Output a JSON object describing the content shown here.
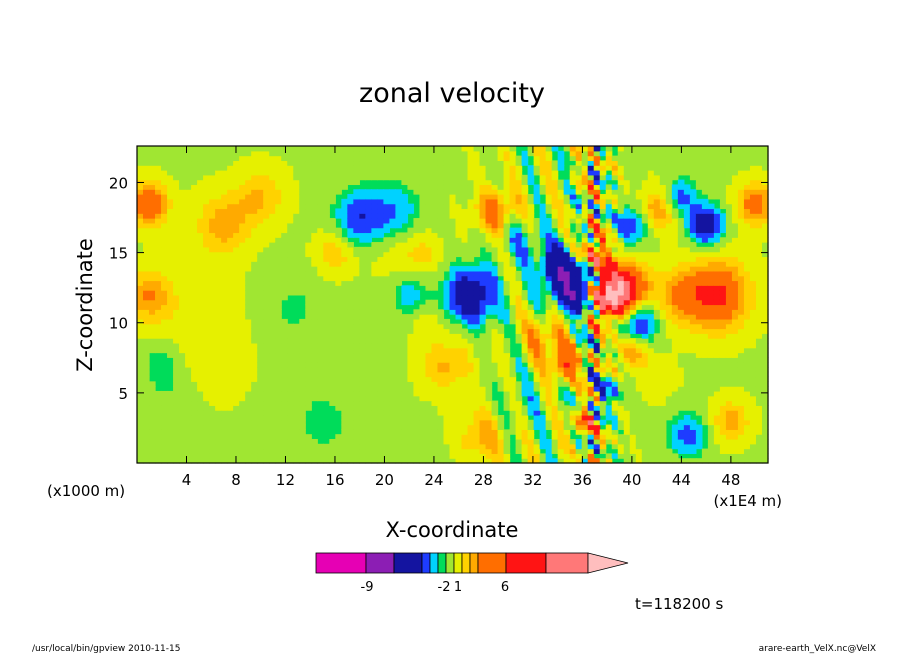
{
  "chart_data": {
    "type": "heatmap",
    "title": "zonal velocity",
    "xlabel": "X-coordinate",
    "ylabel": "Z-coordinate",
    "x_units_left": "(x1000 m)",
    "x_units_right": "(x1E4 m)",
    "x_ticks": [
      "4",
      "8",
      "12",
      "16",
      "20",
      "24",
      "28",
      "32",
      "36",
      "40",
      "44",
      "48"
    ],
    "x_tick_values": [
      4,
      8,
      12,
      16,
      20,
      24,
      28,
      32,
      36,
      40,
      44,
      48
    ],
    "xlim": [
      0,
      51
    ],
    "y_ticks": [
      "5",
      "10",
      "15",
      "20"
    ],
    "y_tick_values": [
      5,
      10,
      15,
      20
    ],
    "ylim": [
      0,
      22.6
    ],
    "time_label": "t=118200 s",
    "colorbar": {
      "colors": [
        "#e600b4",
        "#8c1eb4",
        "#1414a0",
        "#1e3cff",
        "#00d2ff",
        "#00dc5a",
        "#a0e632",
        "#e6f000",
        "#ffd200",
        "#ffaa00",
        "#ff6e00",
        "#ff1414",
        "#ff7878",
        "#ffbebe"
      ],
      "labels": [
        "-9",
        "-2",
        "1",
        "6"
      ]
    },
    "blobs": [
      {
        "x": 7,
        "y": 17,
        "r": 2.2,
        "v": 1.5
      },
      {
        "x": 10,
        "y": 19,
        "r": 2.0,
        "v": 1.2
      },
      {
        "x": 1,
        "y": 18.5,
        "r": 1.5,
        "v": 2.6
      },
      {
        "x": 1,
        "y": 12,
        "r": 1.8,
        "v": 1.6
      },
      {
        "x": 2,
        "y": 7,
        "r": 1.8,
        "v": -1.1
      },
      {
        "x": 3,
        "y": 4,
        "r": 2.2,
        "v": -0.5
      },
      {
        "x": 5,
        "y": 9,
        "r": 4.5,
        "v": 0.6
      },
      {
        "x": 12.5,
        "y": 11,
        "r": 3.0,
        "v": -0.6
      },
      {
        "x": 15,
        "y": 3,
        "r": 3.5,
        "v": -0.6
      },
      {
        "x": 16,
        "y": 15,
        "r": 1.6,
        "v": 1.2
      },
      {
        "x": 18,
        "y": 17.5,
        "r": 2.0,
        "v": -2.2
      },
      {
        "x": 21,
        "y": 18,
        "r": 2.0,
        "v": -1.3
      },
      {
        "x": 20.5,
        "y": 15,
        "r": 2.0,
        "v": 0.4
      },
      {
        "x": 23,
        "y": 15,
        "r": 1.5,
        "v": 0.9
      },
      {
        "x": 22,
        "y": 12,
        "r": 1.5,
        "v": -1.2
      },
      {
        "x": 27,
        "y": 12,
        "r": 2.0,
        "v": -3.5
      },
      {
        "x": 25,
        "y": 7,
        "r": 2.0,
        "v": 1.3
      },
      {
        "x": 23.5,
        "y": 10,
        "r": 1.2,
        "v": 0.6
      },
      {
        "x": 28,
        "y": 2,
        "r": 2.0,
        "v": 1.4
      },
      {
        "x": 31,
        "y": 4,
        "r": 2.5,
        "v": -0.6
      },
      {
        "x": 29,
        "y": 18,
        "r": 1.6,
        "v": 2.2
      },
      {
        "x": 31,
        "y": 16,
        "r": 1.6,
        "v": -1.2
      },
      {
        "x": 34,
        "y": 14,
        "r": 1.6,
        "v": -3.2
      },
      {
        "x": 35.5,
        "y": 12.5,
        "r": 1.8,
        "v": -4.5
      },
      {
        "x": 33,
        "y": 9,
        "r": 1.5,
        "v": 1.8
      },
      {
        "x": 34.5,
        "y": 7,
        "r": 1.2,
        "v": 2.5
      },
      {
        "x": 37,
        "y": 15,
        "r": 1.3,
        "v": 3.0
      },
      {
        "x": 38,
        "y": 12,
        "r": 1.6,
        "v": 5.0
      },
      {
        "x": 39.5,
        "y": 12.5,
        "r": 1.8,
        "v": 3.5
      },
      {
        "x": 40.5,
        "y": 10,
        "r": 1.5,
        "v": -2.5
      },
      {
        "x": 40,
        "y": 17,
        "r": 1.4,
        "v": -2.2
      },
      {
        "x": 42,
        "y": 18,
        "r": 1.5,
        "v": 1.8
      },
      {
        "x": 44,
        "y": 19,
        "r": 1.3,
        "v": -1.8
      },
      {
        "x": 46,
        "y": 17,
        "r": 1.4,
        "v": -3.2
      },
      {
        "x": 47,
        "y": 12,
        "r": 2.5,
        "v": 2.8
      },
      {
        "x": 44,
        "y": 12,
        "r": 2.0,
        "v": 1.6
      },
      {
        "x": 50,
        "y": 18.5,
        "r": 1.5,
        "v": 2.2
      },
      {
        "x": 44.5,
        "y": 2,
        "r": 1.6,
        "v": -1.8
      },
      {
        "x": 48,
        "y": 3,
        "r": 1.5,
        "v": 1.5
      },
      {
        "x": 42,
        "y": 6,
        "r": 1.6,
        "v": 0.5
      },
      {
        "x": 38,
        "y": 5,
        "r": 1.2,
        "v": -1.5
      },
      {
        "x": 36,
        "y": 3,
        "r": 1.0,
        "v": 2.0
      },
      {
        "x": 40,
        "y": 8,
        "r": 1.2,
        "v": 1.8
      }
    ]
  },
  "footer": {
    "left": "/usr/local/bin/gpview   2010-11-15",
    "right": "arare-earth_VelX.nc@VelX"
  }
}
